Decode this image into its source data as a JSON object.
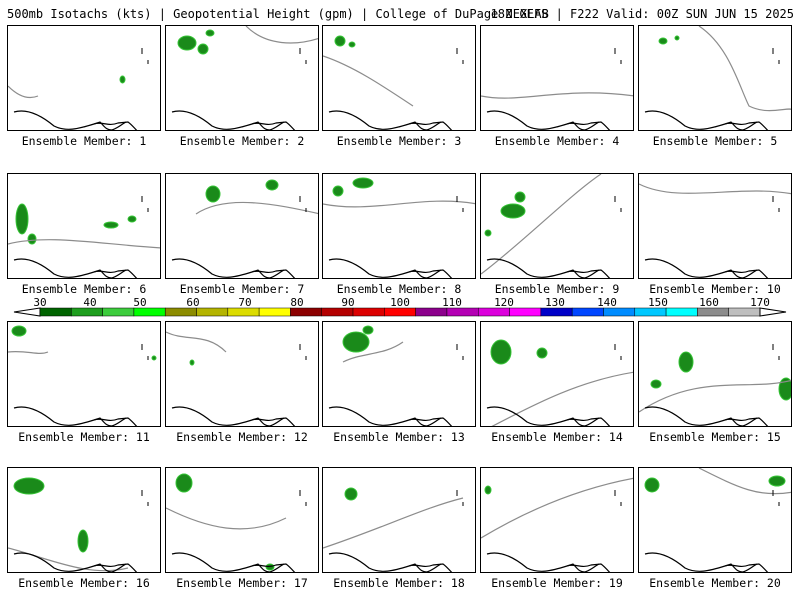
{
  "header": {
    "left": "500mb Isotachs (kts) | Geopotential Height (gpm) | College of DuPage NEXLAB",
    "right": "18Z GEFS | F222 Valid: 00Z SUN JUN 15 2025"
  },
  "colors": {
    "coastline": "#000000",
    "height_contour": "#8c8c8c",
    "isotach_fill": "#1a8a1a",
    "isotach_fill_light": "#35c435"
  },
  "colorbar": {
    "labels": [
      "30",
      "40",
      "50",
      "60",
      "70",
      "80",
      "90",
      "100",
      "110",
      "120",
      "130",
      "140",
      "150",
      "160",
      "170"
    ],
    "colors": [
      "#006400",
      "#1e9e1e",
      "#3ccc3c",
      "#00ff00",
      "#8c8c00",
      "#b4b400",
      "#dcdc00",
      "#ffff00",
      "#8c0000",
      "#b40000",
      "#dc0000",
      "#ff0000",
      "#8c008c",
      "#b400b4",
      "#dc00dc",
      "#ff00ff",
      "#0000c8",
      "#0046ff",
      "#008cff",
      "#00c8ff",
      "#00ffff",
      "#8c8c8c",
      "#bebebe"
    ]
  },
  "panels": [
    {
      "label": "Ensemble Member: 1"
    },
    {
      "label": "Ensemble Member: 2"
    },
    {
      "label": "Ensemble Member: 3"
    },
    {
      "label": "Ensemble Member: 4"
    },
    {
      "label": "Ensemble Member: 5"
    },
    {
      "label": "Ensemble Member: 6"
    },
    {
      "label": "Ensemble Member: 7"
    },
    {
      "label": "Ensemble Member: 8"
    },
    {
      "label": "Ensemble Member: 9"
    },
    {
      "label": "Ensemble Member: 10"
    },
    {
      "label": "Ensemble Member: 11"
    },
    {
      "label": "Ensemble Member: 12"
    },
    {
      "label": "Ensemble Member: 13"
    },
    {
      "label": "Ensemble Member: 14"
    },
    {
      "label": "Ensemble Member: 15"
    },
    {
      "label": "Ensemble Member: 16"
    },
    {
      "label": "Ensemble Member: 17"
    },
    {
      "label": "Ensemble Member: 18"
    },
    {
      "label": "Ensemble Member: 19"
    },
    {
      "label": "Ensemble Member: 20"
    }
  ]
}
